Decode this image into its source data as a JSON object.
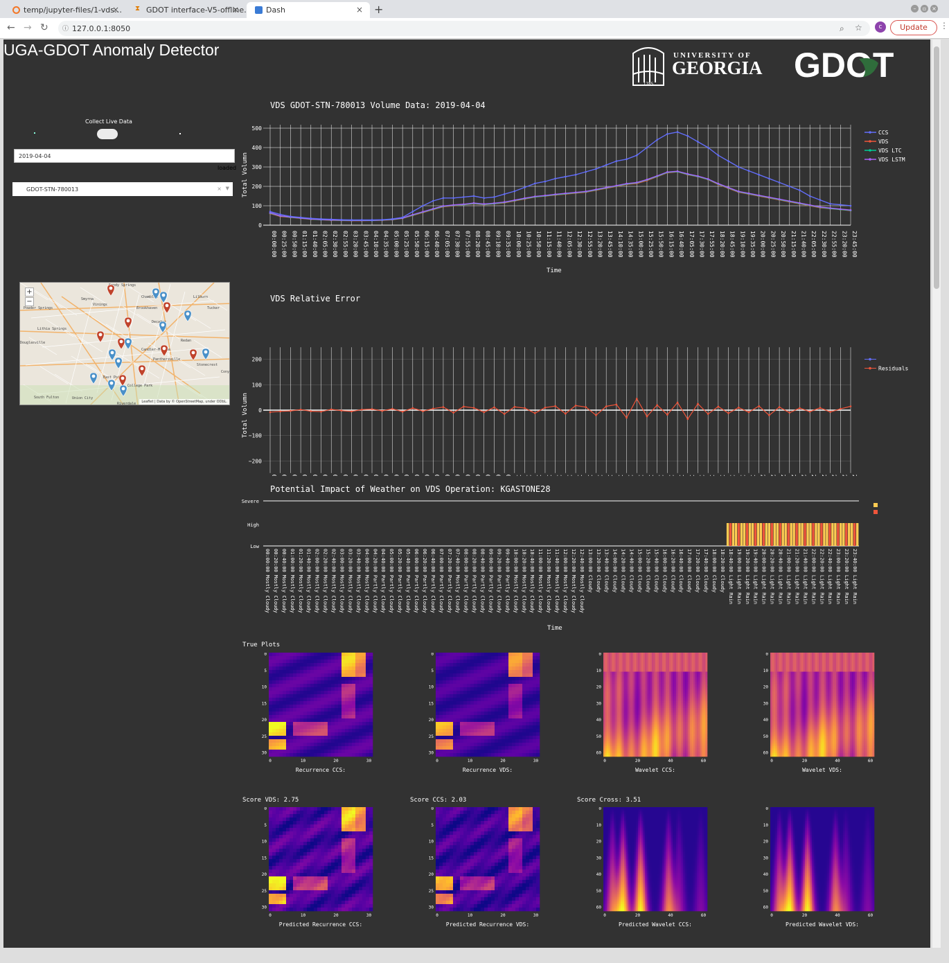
{
  "browser": {
    "tabs": [
      {
        "label": "temp/jupyter-files/1-vds…",
        "icon": "jupyter-icon"
      },
      {
        "label": "GDOT interface-V5-offline…",
        "icon": "hourglass-icon"
      },
      {
        "label": "Dash",
        "icon": "dash-icon"
      }
    ],
    "url": "127.0.0.1:8050",
    "update_label": "Update",
    "profile_initial": "c"
  },
  "app": {
    "title": "UGA-GDOT Anomaly Detector",
    "uga_logo": "UNIVERSITY OF GEORGIA",
    "uga_year": "1785",
    "gdot_logo": "GDOT",
    "live_label": "Collect Live Data",
    "date_value": "2019-04-04",
    "loaded_text": "loaded",
    "station_value": "GDOT-STN-780013",
    "map_attribution": "Leaflet | Data by © OpenStreetMap, under ODbL."
  },
  "map_labels": [
    "Sandy Springs",
    "Smyrna",
    "Chamblee",
    "Lilburn",
    "Powder Springs",
    "Vinings",
    "Brookhaven",
    "Tucker",
    "Lithia Springs",
    "Decatur",
    "Candler-McAfee",
    "Redan",
    "Douglasville",
    "Panthersville",
    "Stonecrest",
    "East Point",
    "College Park",
    "South Fulton",
    "Union City",
    "Riverdale",
    "Conyers"
  ],
  "colors": {
    "ccs": "#636efa",
    "vds": "#ef553b",
    "vds_ltc": "#00cc96",
    "vds_lstm": "#ab63fa",
    "weather_a": "#fecb52",
    "weather_b": "#ef553b"
  },
  "chart_data": [
    {
      "type": "line",
      "title": "VDS GDOT-STN-780013 Volume Data: 2019-04-04",
      "xlabel": "Time",
      "ylabel": "Total Volumn",
      "ylim": [
        0,
        500
      ],
      "yticks": [
        0,
        100,
        200,
        300,
        400,
        500
      ],
      "x": [
        "00:00:00",
        "00:25:00",
        "00:50:00",
        "01:15:00",
        "01:40:00",
        "02:05:00",
        "02:30:00",
        "02:55:00",
        "03:20:00",
        "03:45:00",
        "04:10:00",
        "04:35:00",
        "05:00:00",
        "05:25:00",
        "05:50:00",
        "06:15:00",
        "06:40:00",
        "07:05:00",
        "07:30:00",
        "07:55:00",
        "08:20:00",
        "08:45:00",
        "09:10:00",
        "09:35:00",
        "10:00:00",
        "10:25:00",
        "10:50:00",
        "11:15:00",
        "11:40:00",
        "12:05:00",
        "12:30:00",
        "12:55:00",
        "13:20:00",
        "13:45:00",
        "14:10:00",
        "14:35:00",
        "15:00:00",
        "15:25:00",
        "15:50:00",
        "16:15:00",
        "16:40:00",
        "17:05:00",
        "17:30:00",
        "17:55:00",
        "18:20:00",
        "18:45:00",
        "19:10:00",
        "19:35:00",
        "20:00:00",
        "20:25:00",
        "20:50:00",
        "21:15:00",
        "21:40:00",
        "22:05:00",
        "22:30:00",
        "22:55:00",
        "23:20:00",
        "23:45:00"
      ],
      "series": [
        {
          "name": "CCS",
          "values": [
            70,
            55,
            45,
            40,
            35,
            32,
            30,
            28,
            27,
            27,
            27,
            28,
            32,
            40,
            70,
            100,
            125,
            140,
            140,
            145,
            150,
            140,
            145,
            160,
            175,
            195,
            215,
            225,
            240,
            250,
            260,
            275,
            290,
            310,
            330,
            340,
            360,
            400,
            440,
            470,
            480,
            460,
            430,
            400,
            360,
            330,
            300,
            280,
            260,
            240,
            220,
            200,
            180,
            150,
            130,
            110,
            105,
            100
          ]
        },
        {
          "name": "VDS",
          "values": [
            60,
            45,
            40,
            35,
            30,
            28,
            25,
            24,
            23,
            23,
            24,
            25,
            28,
            35,
            50,
            65,
            80,
            95,
            100,
            105,
            110,
            105,
            110,
            115,
            125,
            135,
            145,
            150,
            155,
            160,
            165,
            170,
            180,
            190,
            200,
            210,
            215,
            230,
            250,
            270,
            275,
            260,
            250,
            235,
            210,
            190,
            170,
            160,
            150,
            140,
            130,
            120,
            110,
            100,
            90,
            85,
            80,
            75
          ]
        },
        {
          "name": "VDS LTC",
          "values": [
            62,
            47,
            41,
            36,
            31,
            28,
            26,
            25,
            24,
            24,
            24,
            26,
            29,
            36,
            52,
            67,
            82,
            97,
            102,
            106,
            112,
            107,
            111,
            117,
            127,
            137,
            146,
            151,
            157,
            162,
            167,
            172,
            182,
            192,
            202,
            212,
            218,
            233,
            252,
            272,
            276,
            262,
            251,
            236,
            212,
            192,
            172,
            162,
            152,
            142,
            132,
            122,
            112,
            102,
            92,
            86,
            81,
            76
          ]
        },
        {
          "name": "VDS LSTM",
          "values": [
            64,
            48,
            42,
            37,
            32,
            29,
            27,
            26,
            25,
            25,
            25,
            27,
            30,
            37,
            54,
            69,
            84,
            99,
            104,
            108,
            114,
            109,
            113,
            119,
            129,
            139,
            148,
            153,
            159,
            164,
            169,
            174,
            184,
            194,
            204,
            214,
            220,
            235,
            254,
            274,
            278,
            264,
            253,
            238,
            214,
            194,
            174,
            164,
            154,
            144,
            134,
            124,
            114,
            104,
            94,
            88,
            83,
            78
          ]
        }
      ]
    },
    {
      "type": "line",
      "title": "VDS Relative Error",
      "xlabel": "Time",
      "ylabel": "Total Volumn",
      "ylim": [
        -250,
        250
      ],
      "yticks": [
        -200,
        -100,
        0,
        100,
        200
      ],
      "x_ref": "same as volume chart",
      "series": [
        {
          "name": "",
          "values": []
        },
        {
          "name": "Residuals",
          "values": [
            -8,
            -5,
            -3,
            2,
            -4,
            -6,
            3,
            -2,
            -5,
            2,
            4,
            -3,
            5,
            -6,
            8,
            -4,
            6,
            12,
            -10,
            14,
            9,
            -8,
            11,
            -15,
            13,
            8,
            -12,
            10,
            16,
            -14,
            18,
            12,
            -20,
            15,
            22,
            -30,
            45,
            -25,
            20,
            -18,
            30,
            -35,
            25,
            -15,
            14,
            -12,
            10,
            -8,
            16,
            -20,
            12,
            -10,
            8,
            -6,
            9,
            -7,
            5,
            15
          ]
        }
      ]
    },
    {
      "type": "bar",
      "title": "Potential Impact of Weather on VDS Operation: KGASTONE28",
      "xlabel": "Time",
      "ylabels": [
        "Severe",
        "High",
        "Low"
      ],
      "conditions": [
        "Mostly Cloudy",
        "Partly Cloudy",
        "Cloudy",
        "Light Rain"
      ],
      "x_ticks": [
        "00:00:00 Mostly Cloudy",
        "00:20:00 Mostly Cloudy",
        "00:40:00 Mostly Cloudy",
        "01:00:00 Mostly Cloudy",
        "01:20:00 Mostly Cloudy",
        "01:40:00 Mostly Cloudy",
        "02:00:00 Mostly Cloudy",
        "02:20:00 Mostly Cloudy",
        "02:40:00 Mostly Cloudy",
        "03:00:00 Mostly Cloudy",
        "03:20:00 Mostly Cloudy",
        "03:40:00 Mostly Cloudy",
        "04:00:00 Mostly Cloudy",
        "04:20:00 Partly Cloudy",
        "04:40:00 Partly Cloudy",
        "05:00:00 Partly Cloudy",
        "05:20:00 Partly Cloudy",
        "05:40:00 Partly Cloudy",
        "06:00:00 Partly Cloudy",
        "06:20:00 Partly Cloudy",
        "06:40:00 Partly Cloudy",
        "07:00:00 Partly Cloudy",
        "07:20:00 Partly Cloudy",
        "07:40:00 Mostly Cloudy",
        "08:00:00 Partly Cloudy",
        "08:20:00 Partly Cloudy",
        "08:40:00 Partly Cloudy",
        "09:00:00 Partly Cloudy",
        "09:20:00 Partly Cloudy",
        "09:40:00 Partly Cloudy",
        "10:00:00 Mostly Cloudy",
        "10:20:00 Mostly Cloudy",
        "10:40:00 Mostly Cloudy",
        "11:00:00 Mostly Cloudy",
        "11:20:00 Mostly Cloudy",
        "11:40:00 Mostly Cloudy",
        "12:00:00 Mostly Cloudy",
        "12:20:00 Mostly Cloudy",
        "12:40:00 Mostly Cloudy",
        "13:00:00 Cloudy",
        "13:20:00 Cloudy",
        "13:40:00 Cloudy",
        "14:00:00 Cloudy",
        "14:20:00 Cloudy",
        "14:40:00 Cloudy",
        "15:00:00 Cloudy",
        "15:20:00 Cloudy",
        "15:40:00 Cloudy",
        "16:00:00 Cloudy",
        "16:20:00 Cloudy",
        "16:40:00 Cloudy",
        "17:00:00 Cloudy",
        "17:20:00 Cloudy",
        "17:40:00 Cloudy",
        "18:00:00 Cloudy",
        "18:20:00 Cloudy",
        "18:40:00 Light Rain",
        "19:00:00 Light Rain",
        "19:20:00 Light Rain",
        "19:40:00 Light Rain",
        "20:00:00 Light Rain",
        "20:20:00 Light Rain",
        "20:40:00 Light Rain",
        "21:00:00 Light Rain",
        "21:20:00 Light Rain",
        "21:40:00 Light Rain",
        "22:00:00 Light Rain",
        "22:20:00 Light Rain",
        "22:40:00 Light Rain",
        "23:00:00 Light Rain",
        "23:20:00 Light Rain",
        "23:40:00 Light Rain"
      ],
      "impact_start": "18:40:00",
      "impact_level": "High"
    },
    {
      "type": "heatmap",
      "section": "True Plots",
      "plots": [
        {
          "label": "Recurrence CCS:",
          "colormap": "plasma",
          "xticks": [
            0,
            10,
            20,
            30
          ],
          "yticks": [
            0,
            5,
            10,
            15,
            20,
            25,
            30
          ]
        },
        {
          "label": "Recurrence VDS:",
          "colormap": "plasma",
          "xticks": [
            0,
            10,
            20,
            30
          ],
          "yticks": [
            0,
            5,
            10,
            15,
            20,
            25,
            30
          ]
        },
        {
          "label": "Wavelet CCS:",
          "colormap": "plasma",
          "xticks": [
            0,
            20,
            40,
            60
          ],
          "yticks": [
            0,
            10,
            20,
            30,
            40,
            50,
            60
          ]
        },
        {
          "label": "Wavelet VDS:",
          "colormap": "plasma",
          "xticks": [
            0,
            20,
            40,
            60
          ],
          "yticks": [
            0,
            10,
            20,
            30,
            40,
            50,
            60
          ]
        }
      ]
    },
    {
      "type": "heatmap",
      "section": "Predicted",
      "scores": [
        "Score VDS: 2.75",
        "Score CCS: 2.03",
        "Score Cross: 3.51"
      ],
      "plots": [
        {
          "label": "Predicted Recurrence CCS:",
          "colormap": "plasma",
          "xticks": [
            0,
            10,
            20,
            30
          ],
          "yticks": [
            0,
            5,
            10,
            15,
            20,
            25,
            30
          ]
        },
        {
          "label": "Predicted Recurrence VDS:",
          "colormap": "plasma",
          "xticks": [
            0,
            10,
            20,
            30
          ],
          "yticks": [
            0,
            5,
            10,
            15,
            20,
            25,
            30
          ]
        },
        {
          "label": "Predicted Wavelet CCS:",
          "colormap": "plasma",
          "xticks": [
            0,
            20,
            40,
            60
          ],
          "yticks": [
            0,
            10,
            20,
            30,
            40,
            50,
            60
          ]
        },
        {
          "label": "Predicted Wavelet VDS:",
          "colormap": "plasma",
          "xticks": [
            0,
            20,
            40,
            60
          ],
          "yticks": [
            0,
            10,
            20,
            30,
            40,
            50,
            60
          ]
        }
      ]
    }
  ]
}
